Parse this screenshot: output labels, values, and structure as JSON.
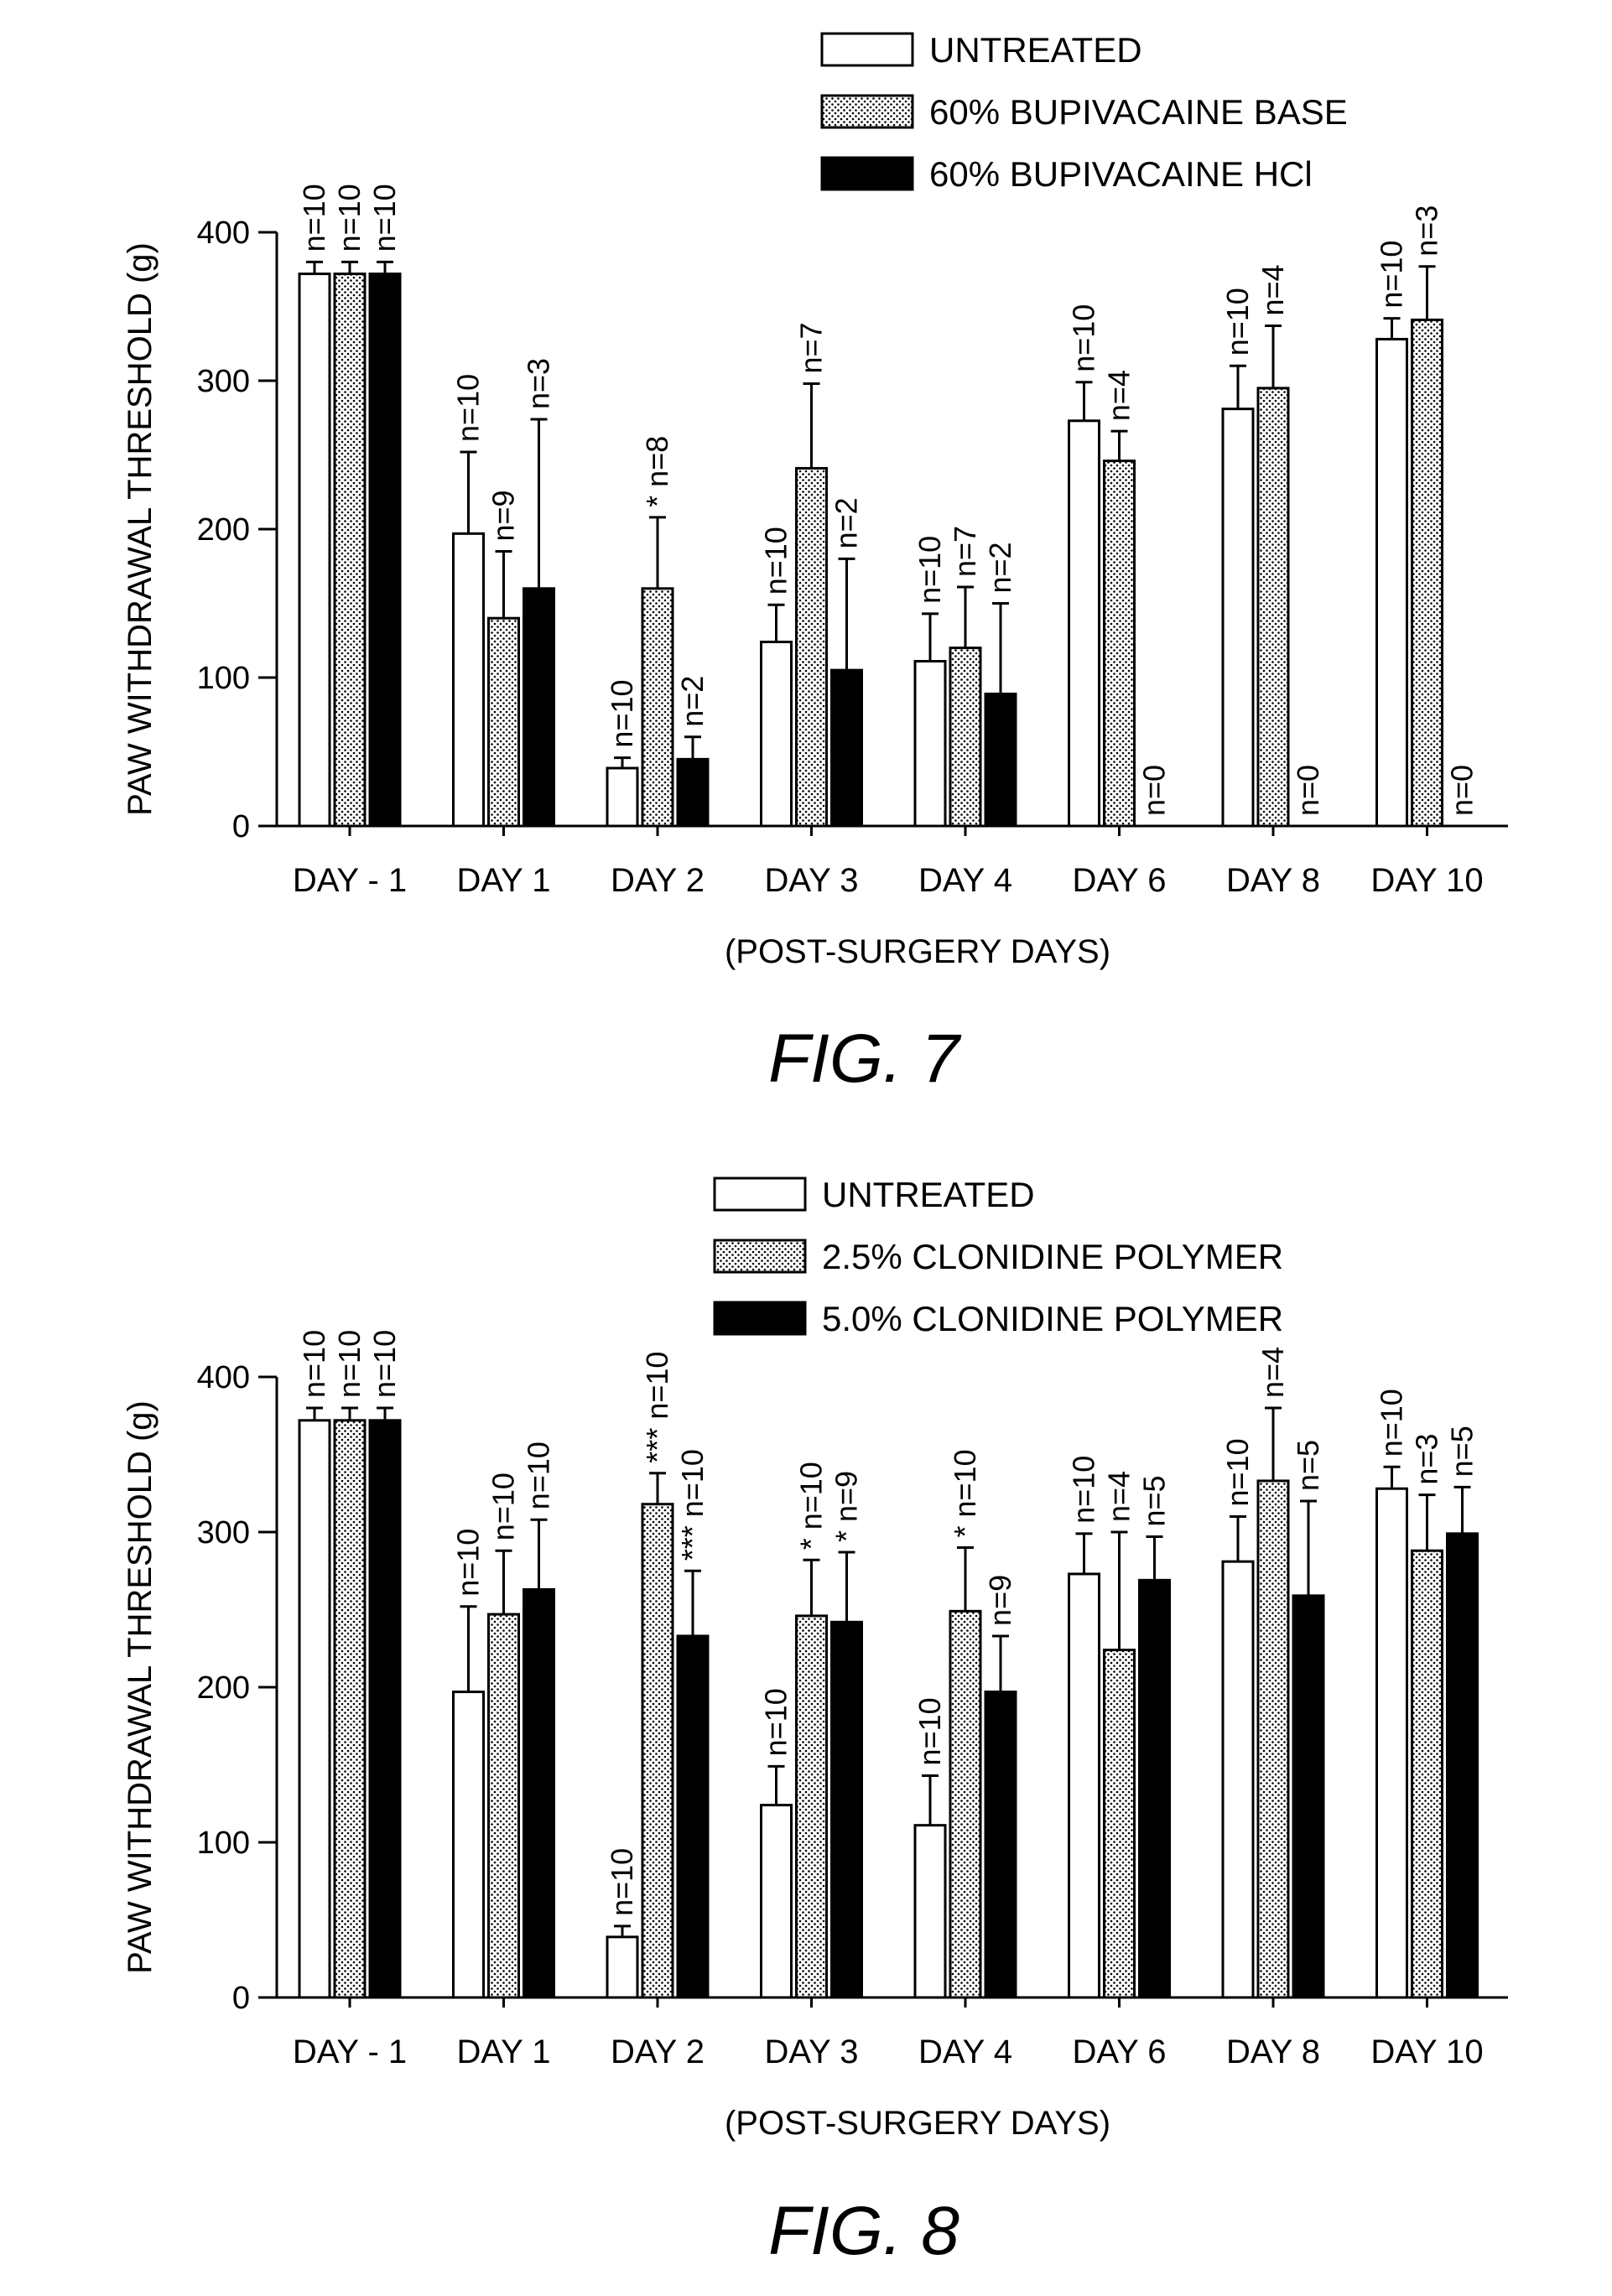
{
  "chart_data": [
    {
      "type": "bar",
      "figure_label": "FIG. 7",
      "ylabel": "PAW WITHDRAWAL THRESHOLD (g)",
      "xlabel": "(POST-SURGERY DAYS)",
      "ylim": [
        0,
        400
      ],
      "yticks": [
        0,
        100,
        200,
        300,
        400
      ],
      "legend_position": "top-right",
      "categories": [
        "DAY - 1",
        "DAY 1",
        "DAY 2",
        "DAY 3",
        "DAY 4",
        "DAY 6",
        "DAY 8",
        "DAY 10"
      ],
      "series": [
        {
          "name": "UNTREATED",
          "fill": "white",
          "values": [
            372,
            197,
            39,
            124,
            111,
            273,
            281,
            328
          ],
          "errors": [
            8,
            55,
            7,
            25,
            32,
            26,
            29,
            14
          ],
          "labels": [
            "n=10",
            "n=10",
            "n=10",
            "n=10",
            "n=10",
            "n=10",
            "n=10",
            "n=10"
          ]
        },
        {
          "name": "60% BUPIVACAINE BASE",
          "fill": "dotted",
          "values": [
            372,
            140,
            160,
            241,
            120,
            246,
            295,
            341
          ],
          "errors": [
            8,
            45,
            48,
            57,
            41,
            20,
            42,
            36
          ],
          "labels": [
            "n=10",
            "n=9",
            "* n=8",
            "n=7",
            "n=7",
            "n=4",
            "n=4",
            "n=3"
          ]
        },
        {
          "name": "60% BUPIVACAINE HCl",
          "fill": "black",
          "values": [
            372,
            160,
            45,
            105,
            89,
            0,
            0,
            0
          ],
          "errors": [
            8,
            114,
            15,
            75,
            61,
            0,
            0,
            0
          ],
          "labels": [
            "n=10",
            "n=3",
            "n=2",
            "n=2",
            "n=2",
            "n=0",
            "n=0",
            "n=0"
          ]
        }
      ]
    },
    {
      "type": "bar",
      "figure_label": "FIG. 8",
      "ylabel": "PAW WITHDRAWAL THRESHOLD (g)",
      "xlabel": "(POST-SURGERY DAYS)",
      "ylim": [
        0,
        400
      ],
      "yticks": [
        0,
        100,
        200,
        300,
        400
      ],
      "legend_position": "top-right",
      "categories": [
        "DAY - 1",
        "DAY 1",
        "DAY 2",
        "DAY 3",
        "DAY 4",
        "DAY 6",
        "DAY 8",
        "DAY 10"
      ],
      "series": [
        {
          "name": "UNTREATED",
          "fill": "white",
          "values": [
            372,
            197,
            39,
            124,
            111,
            273,
            281,
            328
          ],
          "errors": [
            8,
            55,
            7,
            25,
            32,
            26,
            29,
            14
          ],
          "labels": [
            "n=10",
            "n=10",
            "n=10",
            "n=10",
            "n=10",
            "n=10",
            "n=10",
            "n=10"
          ]
        },
        {
          "name": "2.5% CLONIDINE POLYMER",
          "fill": "dotted",
          "values": [
            372,
            247,
            318,
            246,
            249,
            224,
            333,
            288
          ],
          "errors": [
            8,
            41,
            20,
            36,
            41,
            76,
            47,
            36
          ],
          "labels": [
            "n=10",
            "n=10",
            "*** n=10",
            "* n=10",
            "* n=10",
            "n=4",
            "n=4",
            "n=3"
          ]
        },
        {
          "name": "5.0% CLONIDINE POLYMER",
          "fill": "black",
          "values": [
            372,
            263,
            233,
            242,
            197,
            269,
            259,
            299
          ],
          "errors": [
            8,
            45,
            42,
            45,
            36,
            28,
            61,
            30
          ],
          "labels": [
            "n=10",
            "n=10",
            "*** n=10",
            "* n=9",
            "n=9",
            "n=5",
            "n=5",
            "n=5"
          ]
        }
      ]
    }
  ]
}
